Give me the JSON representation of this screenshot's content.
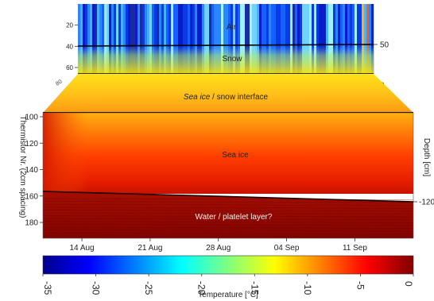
{
  "chart_data": {
    "type": "heatmap",
    "title": "",
    "panels": {
      "upper": {
        "y_ticks": [
          "20",
          "40",
          "60"
        ],
        "y_tick_values": [
          20,
          40,
          60
        ],
        "ylim": [
          0,
          66
        ],
        "right_ticks": [
          "50",
          "0"
        ],
        "labels": [
          "Air",
          "Snow"
        ],
        "skewed_tick": "80"
      },
      "lower": {
        "y_ticks": [
          "100",
          "120",
          "140",
          "160",
          "180"
        ],
        "y_tick_values": [
          100,
          120,
          140,
          160,
          180
        ],
        "ylim": [
          97,
          192
        ],
        "right_ticks": [
          "-120"
        ],
        "labels": [
          "Sea ice",
          "Water / platelet layer?"
        ],
        "ylabel": "Thermistor Nr. (2cm spacing)",
        "ylabel_right": "Depth [cm]"
      }
    },
    "interface_label": {
      "italic": "Sea ice",
      "rest": " / snow interface"
    },
    "x_ticks": [
      "14  Aug",
      "21  Aug",
      "28  Aug",
      "04  Sep",
      "11  Sep"
    ],
    "x_tick_dates": [
      "2012-08-14",
      "2012-08-21",
      "2012-08-28",
      "2012-09-04",
      "2012-09-11"
    ],
    "xlim": [
      "2012-08-10",
      "2012-09-17"
    ],
    "boundaries": {
      "air_snow_thermistor": 40,
      "snow_ice_thermistor": 66,
      "ice_top_thermistor": 101,
      "ice_water_thermistor_start": 158,
      "ice_water_thermistor_end": 164
    },
    "colorbar": {
      "label": "Temperature [°C]",
      "ticks": [
        "-35",
        "-30",
        "-25",
        "-20",
        "-15",
        "-10",
        "-5",
        "0"
      ],
      "tick_values": [
        -35,
        -30,
        -25,
        -20,
        -15,
        -10,
        -5,
        0
      ],
      "range": [
        -35,
        0
      ],
      "colormap": [
        "#00008f",
        "#0000ff",
        "#0080ff",
        "#00ffff",
        "#80ff80",
        "#ffff00",
        "#ff8000",
        "#ff0000",
        "#800000"
      ]
    }
  }
}
